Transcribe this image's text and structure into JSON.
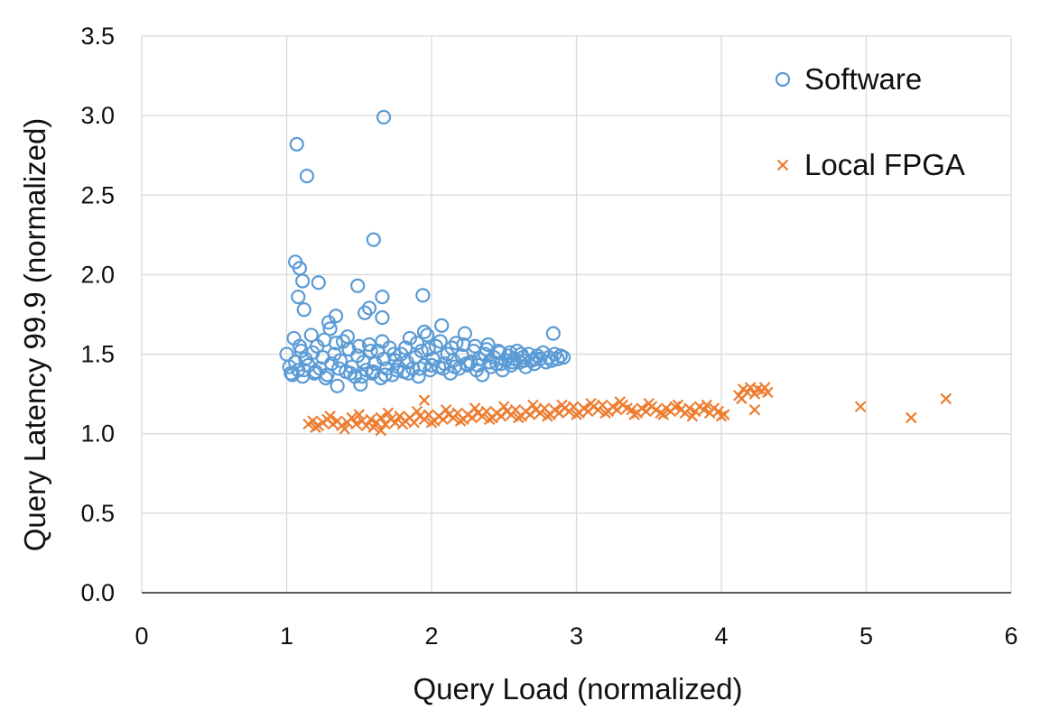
{
  "chart_data": {
    "type": "scatter",
    "title": "",
    "xlabel": "Query Load (normalized)",
    "ylabel": "Query Latency 99.9 (normalized)",
    "xlim": [
      0,
      6
    ],
    "ylim": [
      0,
      3.5
    ],
    "xticks": [
      0,
      1,
      2,
      3,
      4,
      5,
      6
    ],
    "xtick_labels": [
      "0",
      "1",
      "2",
      "3",
      "4",
      "5",
      "6"
    ],
    "yticks": [
      0,
      0.5,
      1,
      1.5,
      2,
      2.5,
      3,
      3.5
    ],
    "ytick_labels": [
      "0.0",
      "0.5",
      "1.0",
      "1.5",
      "2.0",
      "2.5",
      "3.0",
      "3.5"
    ],
    "grid": true,
    "legend_position": "top-right",
    "series": [
      {
        "name": "Software",
        "marker": "circle",
        "color": "#5b9bd5",
        "points": [
          [
            1.0,
            1.5
          ],
          [
            1.02,
            1.42
          ],
          [
            1.03,
            1.38
          ],
          [
            1.05,
            1.6
          ],
          [
            1.06,
            1.45
          ],
          [
            1.08,
            1.4
          ],
          [
            1.1,
            1.52
          ],
          [
            1.11,
            1.36
          ],
          [
            1.13,
            1.47
          ],
          [
            1.15,
            1.43
          ],
          [
            1.17,
            1.62
          ],
          [
            1.19,
            1.38
          ],
          [
            1.21,
            1.55
          ],
          [
            1.23,
            1.41
          ],
          [
            1.25,
            1.48
          ],
          [
            1.27,
            1.35
          ],
          [
            1.29,
            1.7
          ],
          [
            1.31,
            1.44
          ],
          [
            1.33,
            1.5
          ],
          [
            1.35,
            1.3
          ],
          [
            1.37,
            1.46
          ],
          [
            1.39,
            1.58
          ],
          [
            1.41,
            1.39
          ],
          [
            1.43,
            1.53
          ],
          [
            1.45,
            1.42
          ],
          [
            1.47,
            1.36
          ],
          [
            1.49,
            1.49
          ],
          [
            1.51,
            1.31
          ],
          [
            1.53,
            1.45
          ],
          [
            1.55,
            1.4
          ],
          [
            1.57,
            1.56
          ],
          [
            1.59,
            1.38
          ],
          [
            1.61,
            1.44
          ],
          [
            1.63,
            1.52
          ],
          [
            1.65,
            1.35
          ],
          [
            1.67,
            1.47
          ],
          [
            1.69,
            1.41
          ],
          [
            1.71,
            1.54
          ],
          [
            1.73,
            1.37
          ],
          [
            1.75,
            1.46
          ],
          [
            1.77,
            1.42
          ],
          [
            1.79,
            1.5
          ],
          [
            1.81,
            1.39
          ],
          [
            1.83,
            1.45
          ],
          [
            1.85,
            1.6
          ],
          [
            1.87,
            1.41
          ],
          [
            1.89,
            1.48
          ],
          [
            1.91,
            1.36
          ],
          [
            1.93,
            1.52
          ],
          [
            1.95,
            1.43
          ],
          [
            1.97,
            1.62
          ],
          [
            1.99,
            1.4
          ],
          [
            2.01,
            1.47
          ],
          [
            2.03,
            1.55
          ],
          [
            2.05,
            1.42
          ],
          [
            2.07,
            1.68
          ],
          [
            2.09,
            1.44
          ],
          [
            2.11,
            1.5
          ],
          [
            2.13,
            1.38
          ],
          [
            2.15,
            1.46
          ],
          [
            2.17,
            1.57
          ],
          [
            2.19,
            1.41
          ],
          [
            2.21,
            1.49
          ],
          [
            2.23,
            1.63
          ],
          [
            2.25,
            1.43
          ],
          [
            2.27,
            1.45
          ],
          [
            2.29,
            1.52
          ],
          [
            2.31,
            1.4
          ],
          [
            2.33,
            1.47
          ],
          [
            2.35,
            1.37
          ],
          [
            2.37,
            1.5
          ],
          [
            2.39,
            1.56
          ],
          [
            2.41,
            1.42
          ],
          [
            2.43,
            1.48
          ],
          [
            2.45,
            1.44
          ],
          [
            2.47,
            1.51
          ],
          [
            2.49,
            1.4
          ],
          [
            2.51,
            1.46
          ],
          [
            2.53,
            1.49
          ],
          [
            2.55,
            1.43
          ],
          [
            2.57,
            1.47
          ],
          [
            2.59,
            1.52
          ],
          [
            2.61,
            1.45
          ],
          [
            2.63,
            1.48
          ],
          [
            2.65,
            1.42
          ],
          [
            2.67,
            1.5
          ],
          [
            2.69,
            1.46
          ],
          [
            2.71,
            1.44
          ],
          [
            2.73,
            1.49
          ],
          [
            2.75,
            1.47
          ],
          [
            2.77,
            1.51
          ],
          [
            2.79,
            1.45
          ],
          [
            2.81,
            1.48
          ],
          [
            2.83,
            1.46
          ],
          [
            2.85,
            1.5
          ],
          [
            2.87,
            1.47
          ],
          [
            2.89,
            1.49
          ],
          [
            2.91,
            1.48
          ],
          [
            1.04,
            1.37
          ],
          [
            1.12,
            1.4
          ],
          [
            1.2,
            1.39
          ],
          [
            1.28,
            1.37
          ],
          [
            1.36,
            1.41
          ],
          [
            1.44,
            1.38
          ],
          [
            1.52,
            1.36
          ],
          [
            1.6,
            1.39
          ],
          [
            1.68,
            1.37
          ],
          [
            1.76,
            1.4
          ],
          [
            1.84,
            1.38
          ],
          [
            1.92,
            1.41
          ],
          [
            2.0,
            1.43
          ],
          [
            2.08,
            1.41
          ],
          [
            2.16,
            1.42
          ],
          [
            2.24,
            1.44
          ],
          [
            2.32,
            1.43
          ],
          [
            2.4,
            1.45
          ],
          [
            2.48,
            1.44
          ],
          [
            2.56,
            1.45
          ],
          [
            2.64,
            1.46
          ],
          [
            2.72,
            1.47
          ],
          [
            1.09,
            1.55
          ],
          [
            1.18,
            1.51
          ],
          [
            1.26,
            1.59
          ],
          [
            1.34,
            1.57
          ],
          [
            1.42,
            1.61
          ],
          [
            1.5,
            1.55
          ],
          [
            1.58,
            1.52
          ],
          [
            1.66,
            1.58
          ],
          [
            1.74,
            1.5
          ],
          [
            1.82,
            1.54
          ],
          [
            1.9,
            1.57
          ],
          [
            1.98,
            1.53
          ],
          [
            2.06,
            1.58
          ],
          [
            2.14,
            1.54
          ],
          [
            2.22,
            1.56
          ],
          [
            2.3,
            1.55
          ],
          [
            2.38,
            1.53
          ],
          [
            2.46,
            1.52
          ],
          [
            2.54,
            1.51
          ],
          [
            2.62,
            1.5
          ],
          [
            1.07,
            2.82
          ],
          [
            1.67,
            2.99
          ],
          [
            1.14,
            2.62
          ],
          [
            1.6,
            2.22
          ],
          [
            1.06,
            2.08
          ],
          [
            1.09,
            2.04
          ],
          [
            1.11,
            1.96
          ],
          [
            1.22,
            1.95
          ],
          [
            1.08,
            1.86
          ],
          [
            1.49,
            1.93
          ],
          [
            1.66,
            1.86
          ],
          [
            1.94,
            1.87
          ],
          [
            1.54,
            1.76
          ],
          [
            1.57,
            1.79
          ],
          [
            1.66,
            1.73
          ],
          [
            1.12,
            1.78
          ],
          [
            1.34,
            1.74
          ],
          [
            2.84,
            1.63
          ],
          [
            1.3,
            1.66
          ],
          [
            1.95,
            1.64
          ]
        ]
      },
      {
        "name": "Local FPGA",
        "marker": "x",
        "color": "#ed7d31",
        "points": [
          [
            1.15,
            1.06
          ],
          [
            1.18,
            1.08
          ],
          [
            1.22,
            1.05
          ],
          [
            1.25,
            1.07
          ],
          [
            1.28,
            1.09
          ],
          [
            1.32,
            1.06
          ],
          [
            1.35,
            1.08
          ],
          [
            1.38,
            1.05
          ],
          [
            1.42,
            1.07
          ],
          [
            1.45,
            1.1
          ],
          [
            1.48,
            1.06
          ],
          [
            1.52,
            1.08
          ],
          [
            1.55,
            1.05
          ],
          [
            1.58,
            1.09
          ],
          [
            1.62,
            1.07
          ],
          [
            1.65,
            1.1
          ],
          [
            1.68,
            1.06
          ],
          [
            1.72,
            1.09
          ],
          [
            1.75,
            1.07
          ],
          [
            1.78,
            1.11
          ],
          [
            1.82,
            1.08
          ],
          [
            1.85,
            1.1
          ],
          [
            1.88,
            1.07
          ],
          [
            1.92,
            1.11
          ],
          [
            1.95,
            1.09
          ],
          [
            1.98,
            1.12
          ],
          [
            2.02,
            1.08
          ],
          [
            2.05,
            1.11
          ],
          [
            2.08,
            1.09
          ],
          [
            2.12,
            1.12
          ],
          [
            2.15,
            1.1
          ],
          [
            2.18,
            1.13
          ],
          [
            2.22,
            1.09
          ],
          [
            2.25,
            1.12
          ],
          [
            2.28,
            1.1
          ],
          [
            2.32,
            1.13
          ],
          [
            2.35,
            1.11
          ],
          [
            2.38,
            1.14
          ],
          [
            2.42,
            1.1
          ],
          [
            2.45,
            1.13
          ],
          [
            2.48,
            1.11
          ],
          [
            2.52,
            1.14
          ],
          [
            2.55,
            1.12
          ],
          [
            2.58,
            1.15
          ],
          [
            2.62,
            1.11
          ],
          [
            2.65,
            1.14
          ],
          [
            2.68,
            1.12
          ],
          [
            2.72,
            1.15
          ],
          [
            2.75,
            1.13
          ],
          [
            2.78,
            1.16
          ],
          [
            2.82,
            1.12
          ],
          [
            2.85,
            1.15
          ],
          [
            2.88,
            1.13
          ],
          [
            2.92,
            1.16
          ],
          [
            2.95,
            1.14
          ],
          [
            2.98,
            1.17
          ],
          [
            3.02,
            1.13
          ],
          [
            3.05,
            1.16
          ],
          [
            3.08,
            1.14
          ],
          [
            3.12,
            1.17
          ],
          [
            3.15,
            1.15
          ],
          [
            3.18,
            1.18
          ],
          [
            3.22,
            1.14
          ],
          [
            3.25,
            1.17
          ],
          [
            3.28,
            1.15
          ],
          [
            3.32,
            1.18
          ],
          [
            3.35,
            1.16
          ],
          [
            3.38,
            1.15
          ],
          [
            3.42,
            1.13
          ],
          [
            3.45,
            1.16
          ],
          [
            3.48,
            1.14
          ],
          [
            3.52,
            1.17
          ],
          [
            3.55,
            1.15
          ],
          [
            3.58,
            1.13
          ],
          [
            3.62,
            1.16
          ],
          [
            3.65,
            1.14
          ],
          [
            3.68,
            1.17
          ],
          [
            3.72,
            1.15
          ],
          [
            3.75,
            1.13
          ],
          [
            3.78,
            1.16
          ],
          [
            3.82,
            1.14
          ],
          [
            3.85,
            1.17
          ],
          [
            3.88,
            1.15
          ],
          [
            3.92,
            1.13
          ],
          [
            3.95,
            1.16
          ],
          [
            3.98,
            1.14
          ],
          [
            4.02,
            1.12
          ],
          [
            1.2,
            1.04
          ],
          [
            1.4,
            1.03
          ],
          [
            1.6,
            1.04
          ],
          [
            1.8,
            1.06
          ],
          [
            2.0,
            1.07
          ],
          [
            2.2,
            1.08
          ],
          [
            2.4,
            1.09
          ],
          [
            2.6,
            1.1
          ],
          [
            2.8,
            1.11
          ],
          [
            3.0,
            1.12
          ],
          [
            3.2,
            1.13
          ],
          [
            3.4,
            1.12
          ],
          [
            3.6,
            1.12
          ],
          [
            3.8,
            1.11
          ],
          [
            4.0,
            1.11
          ],
          [
            1.3,
            1.11
          ],
          [
            1.5,
            1.12
          ],
          [
            1.7,
            1.13
          ],
          [
            1.9,
            1.14
          ],
          [
            2.1,
            1.15
          ],
          [
            2.3,
            1.16
          ],
          [
            2.5,
            1.17
          ],
          [
            2.7,
            1.18
          ],
          [
            2.9,
            1.18
          ],
          [
            3.1,
            1.19
          ],
          [
            3.3,
            1.2
          ],
          [
            3.5,
            1.19
          ],
          [
            3.7,
            1.18
          ],
          [
            3.9,
            1.18
          ],
          [
            4.12,
            1.24
          ],
          [
            4.15,
            1.28
          ],
          [
            4.18,
            1.26
          ],
          [
            4.2,
            1.29
          ],
          [
            4.23,
            1.25
          ],
          [
            4.25,
            1.28
          ],
          [
            4.28,
            1.27
          ],
          [
            4.3,
            1.29
          ],
          [
            4.32,
            1.26
          ],
          [
            4.14,
            1.22
          ],
          [
            1.95,
            1.21
          ],
          [
            1.65,
            1.02
          ],
          [
            4.23,
            1.15
          ],
          [
            4.96,
            1.17
          ],
          [
            5.31,
            1.1
          ],
          [
            5.55,
            1.22
          ]
        ]
      }
    ]
  }
}
